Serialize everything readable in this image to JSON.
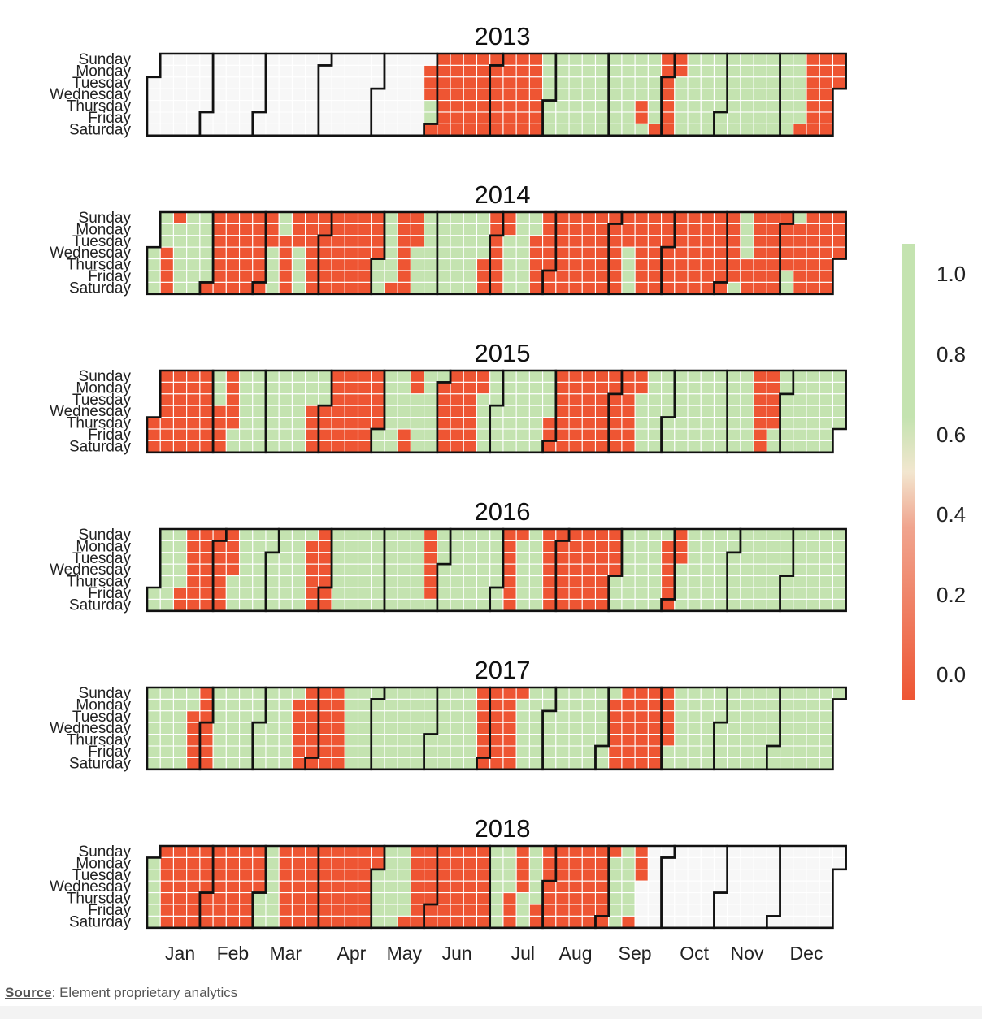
{
  "colors": {
    "low": "#ee5533",
    "mid": "#f2e6cf",
    "high": "#c4e3b0",
    "empty": "#f7f7f7",
    "cell_border": "#ffffff",
    "month_border": "#111111"
  },
  "source": {
    "label": "Source",
    "text": ": Element proprietary analytics"
  },
  "chart_data": {
    "type": "heatmap",
    "subtype": "calendar",
    "years": [
      "2013",
      "2014",
      "2015",
      "2016",
      "2017",
      "2018"
    ],
    "weekdays": [
      "Sunday",
      "Monday",
      "Tuesday",
      "Wednesday",
      "Thursday",
      "Friday",
      "Saturday"
    ],
    "months": [
      "Jan",
      "Feb",
      "Mar",
      "Apr",
      "May",
      "Jun",
      "Jul",
      "Aug",
      "Sep",
      "Oct",
      "Nov",
      "Dec"
    ],
    "legend": {
      "ticks": [
        "1.0",
        "0.8",
        "0.6",
        "0.4",
        "0.2",
        "0.0"
      ],
      "range": [
        0,
        1
      ],
      "placement": "right"
    },
    "value_scale": "0 = red, 1 = green; empty = no data",
    "daily_values_by_year": {
      "2013": {
        "no_data_before": "2013-05-27",
        "red_ranges": [
          [
            "2013-05-27",
            "2013-05-29"
          ],
          [
            "2013-06-01",
            "2013-07-27"
          ],
          [
            "2013-09-19",
            "2013-09-20"
          ],
          [
            "2013-09-28",
            "2013-10-07"
          ],
          [
            "2013-12-14",
            "2013-12-31"
          ]
        ]
      },
      "2014": {
        "red_ranges": [
          [
            "2014-01-08",
            "2014-01-12"
          ],
          [
            "2014-02-01",
            "2014-04-30"
          ],
          [
            "2014-05-10",
            "2014-05-20"
          ],
          [
            "2014-06-26",
            "2014-07-07"
          ],
          [
            "2014-07-22",
            "2014-12-31"
          ]
        ],
        "green_ranges": [
          [
            "2014-03-05",
            "2014-03-10"
          ],
          [
            "2014-03-19",
            "2014-03-22"
          ],
          [
            "2014-09-10",
            "2014-09-13"
          ],
          [
            "2014-11-08",
            "2014-11-12"
          ],
          [
            "2014-12-05",
            "2014-12-07"
          ]
        ]
      },
      "2015": {
        "red_ranges": [
          [
            "2015-01-01",
            "2015-01-31"
          ],
          [
            "2015-02-04",
            "2015-02-12"
          ],
          [
            "2015-03-25",
            "2015-03-28"
          ],
          [
            "2015-04-01",
            "2015-04-30"
          ],
          [
            "2015-05-15",
            "2015-05-18"
          ],
          [
            "2015-06-01",
            "2015-06-22"
          ],
          [
            "2015-07-30",
            "2015-08-31"
          ],
          [
            "2015-09-01",
            "2015-09-14"
          ],
          [
            "2015-11-15",
            "2015-11-26"
          ]
        ]
      },
      "2016": {
        "red_ranges": [
          [
            "2016-01-15",
            "2016-01-31"
          ],
          [
            "2016-02-01",
            "2016-02-10"
          ],
          [
            "2016-03-21",
            "2016-04-02"
          ],
          [
            "2016-05-22",
            "2016-05-27"
          ],
          [
            "2016-07-03",
            "2016-07-10"
          ],
          [
            "2016-07-24",
            "2016-08-31"
          ],
          [
            "2016-09-26",
            "2016-10-04"
          ]
        ]
      },
      "2017": {
        "red_ranges": [
          [
            "2017-01-24",
            "2017-01-31"
          ],
          [
            "2017-02-01",
            "2017-02-04"
          ],
          [
            "2017-03-20",
            "2017-04-15"
          ],
          [
            "2017-06-25",
            "2017-07-16"
          ],
          [
            "2017-09-04",
            "2017-09-30"
          ],
          [
            "2017-10-01",
            "2017-10-05"
          ]
        ]
      },
      "2018": {
        "no_data_after": "2018-09-18",
        "red_ranges": [
          [
            "2018-01-07",
            "2018-02-28"
          ],
          [
            "2018-03-11",
            "2018-04-30"
          ],
          [
            "2018-05-19",
            "2018-06-30"
          ],
          [
            "2018-07-12",
            "2018-07-18"
          ],
          [
            "2018-07-27",
            "2018-08-31"
          ],
          [
            "2018-09-01",
            "2018-09-02"
          ],
          [
            "2018-09-15",
            "2018-09-18"
          ]
        ]
      }
    }
  }
}
